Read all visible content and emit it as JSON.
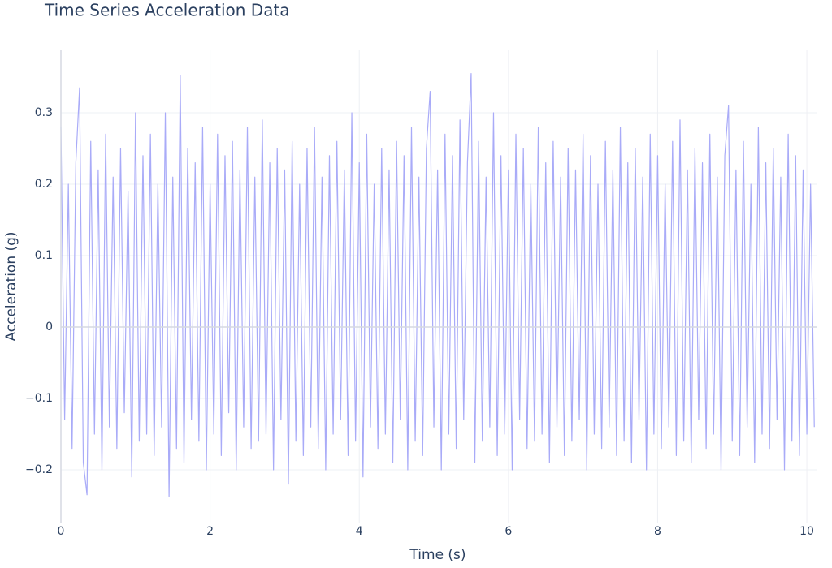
{
  "chart_data": {
    "type": "line",
    "title": "Time Series Acceleration Data",
    "xlabel": "Time (s)",
    "ylabel": "Acceleration (g)",
    "color": "#a9abf8",
    "grid": true,
    "zeroline": true,
    "xlim": [
      0,
      10.13
    ],
    "xticks": [
      0,
      2,
      4,
      6,
      8,
      10
    ],
    "ylim": [
      -0.275,
      0.3875
    ],
    "yticks": [
      {
        "value": -0.2,
        "label": "−0.2"
      },
      {
        "value": -0.1,
        "label": "−0.1"
      },
      0,
      0.1,
      0.2,
      0.3
    ],
    "x": [
      0,
      0.05,
      0.1,
      0.15,
      0.2,
      0.25,
      0.3,
      0.35,
      0.4,
      0.45,
      0.5,
      0.55,
      0.6,
      0.65,
      0.7,
      0.75,
      0.8,
      0.85,
      0.9,
      0.95,
      1,
      1.05,
      1.1,
      1.15,
      1.2,
      1.25,
      1.3,
      1.35,
      1.4,
      1.45,
      1.5,
      1.55,
      1.6,
      1.65,
      1.7,
      1.75,
      1.8,
      1.85,
      1.9,
      1.95,
      2,
      2.05,
      2.1,
      2.15,
      2.2,
      2.25,
      2.3,
      2.35,
      2.4,
      2.45,
      2.5,
      2.55,
      2.6,
      2.65,
      2.7,
      2.75,
      2.8,
      2.85,
      2.9,
      2.95,
      3,
      3.05,
      3.1,
      3.15,
      3.2,
      3.25,
      3.3,
      3.35,
      3.4,
      3.45,
      3.5,
      3.55,
      3.6,
      3.65,
      3.7,
      3.75,
      3.8,
      3.85,
      3.9,
      3.95,
      4,
      4.05,
      4.1,
      4.15,
      4.2,
      4.25,
      4.3,
      4.35,
      4.4,
      4.45,
      4.5,
      4.55,
      4.6,
      4.65,
      4.7,
      4.75,
      4.8,
      4.85,
      4.9,
      4.95,
      5,
      5.05,
      5.1,
      5.15,
      5.2,
      5.25,
      5.3,
      5.35,
      5.4,
      5.45,
      5.5,
      5.55,
      5.6,
      5.65,
      5.7,
      5.75,
      5.8,
      5.85,
      5.9,
      5.95,
      6,
      6.05,
      6.1,
      6.15,
      6.2,
      6.25,
      6.3,
      6.35,
      6.4,
      6.45,
      6.5,
      6.55,
      6.6,
      6.65,
      6.7,
      6.75,
      6.8,
      6.85,
      6.9,
      6.95,
      7,
      7.05,
      7.1,
      7.15,
      7.2,
      7.25,
      7.3,
      7.35,
      7.4,
      7.45,
      7.5,
      7.55,
      7.6,
      7.65,
      7.7,
      7.75,
      7.8,
      7.85,
      7.9,
      7.95,
      8,
      8.05,
      8.1,
      8.15,
      8.2,
      8.25,
      8.3,
      8.35,
      8.4,
      8.45,
      8.5,
      8.55,
      8.6,
      8.65,
      8.7,
      8.75,
      8.8,
      8.85,
      8.9,
      8.95,
      9,
      9.05,
      9.1,
      9.15,
      9.2,
      9.25,
      9.3,
      9.35,
      9.4,
      9.45,
      9.5,
      9.55,
      9.6,
      9.65,
      9.7,
      9.75,
      9.8,
      9.85,
      9.9,
      9.95,
      10,
      10.05,
      10.1
    ],
    "values": [
      0.28,
      -0.13,
      0.2,
      -0.17,
      0.23,
      0.335,
      -0.19,
      -0.235,
      0.26,
      -0.15,
      0.22,
      -0.2,
      0.27,
      -0.14,
      0.21,
      -0.17,
      0.25,
      -0.12,
      0.19,
      -0.21,
      0.3,
      -0.16,
      0.24,
      -0.15,
      0.27,
      -0.18,
      0.2,
      -0.14,
      0.3,
      -0.237,
      0.21,
      -0.17,
      0.352,
      -0.19,
      0.25,
      -0.13,
      0.23,
      -0.16,
      0.28,
      -0.2,
      0.2,
      -0.15,
      0.27,
      -0.18,
      0.24,
      -0.12,
      0.26,
      -0.2,
      0.22,
      -0.14,
      0.28,
      -0.17,
      0.21,
      -0.16,
      0.29,
      -0.15,
      0.23,
      -0.2,
      0.25,
      -0.13,
      0.22,
      -0.22,
      0.26,
      -0.16,
      0.2,
      -0.18,
      0.25,
      -0.14,
      0.28,
      -0.17,
      0.21,
      -0.2,
      0.24,
      -0.15,
      0.26,
      -0.13,
      0.22,
      -0.18,
      0.3,
      -0.16,
      0.23,
      -0.21,
      0.27,
      -0.14,
      0.2,
      -0.17,
      0.25,
      -0.15,
      0.22,
      -0.19,
      0.26,
      -0.13,
      0.24,
      -0.2,
      0.28,
      -0.16,
      0.21,
      -0.18,
      0.25,
      0.33,
      -0.14,
      0.22,
      -0.2,
      0.27,
      -0.15,
      0.24,
      -0.17,
      0.29,
      -0.13,
      0.23,
      0.355,
      -0.19,
      0.26,
      -0.16,
      0.21,
      -0.14,
      0.3,
      -0.18,
      0.24,
      -0.15,
      0.22,
      -0.2,
      0.27,
      -0.13,
      0.25,
      -0.17,
      0.2,
      -0.16,
      0.28,
      -0.15,
      0.23,
      -0.19,
      0.26,
      -0.14,
      0.21,
      -0.18,
      0.25,
      -0.16,
      0.22,
      -0.13,
      0.27,
      -0.2,
      0.24,
      -0.15,
      0.2,
      -0.17,
      0.26,
      -0.14,
      0.22,
      -0.18,
      0.28,
      -0.16,
      0.23,
      -0.19,
      0.25,
      -0.13,
      0.21,
      -0.2,
      0.27,
      -0.15,
      0.24,
      -0.17,
      0.2,
      -0.14,
      0.26,
      -0.18,
      0.29,
      -0.16,
      0.22,
      -0.19,
      0.25,
      -0.13,
      0.23,
      -0.17,
      0.27,
      -0.15,
      0.21,
      -0.2,
      0.24,
      0.31,
      -0.16,
      0.22,
      -0.18,
      0.26,
      -0.14,
      0.2,
      -0.19,
      0.28,
      -0.15,
      0.23,
      -0.17,
      0.25,
      -0.13,
      0.21,
      -0.2,
      0.27,
      -0.16,
      0.24,
      -0.18,
      0.22,
      -0.15,
      0.2,
      -0.14
    ]
  }
}
